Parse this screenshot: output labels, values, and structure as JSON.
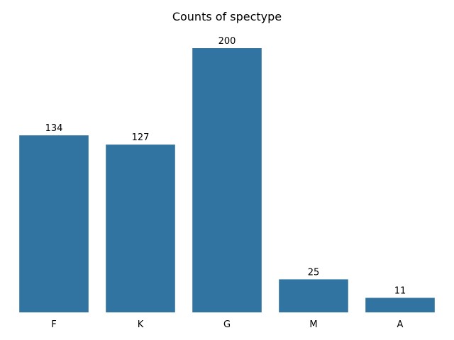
{
  "chart_data": {
    "type": "bar",
    "title": "Counts of spectype",
    "xlabel": "",
    "ylabel": "",
    "categories": [
      "F",
      "K",
      "G",
      "M",
      "A"
    ],
    "values": [
      134,
      127,
      200,
      25,
      11
    ],
    "data_labels": [
      "134",
      "127",
      "200",
      "25",
      "11"
    ],
    "ylim": [
      0,
      210
    ],
    "bar_color": "#3274a1",
    "grid": false,
    "legend": "none"
  }
}
